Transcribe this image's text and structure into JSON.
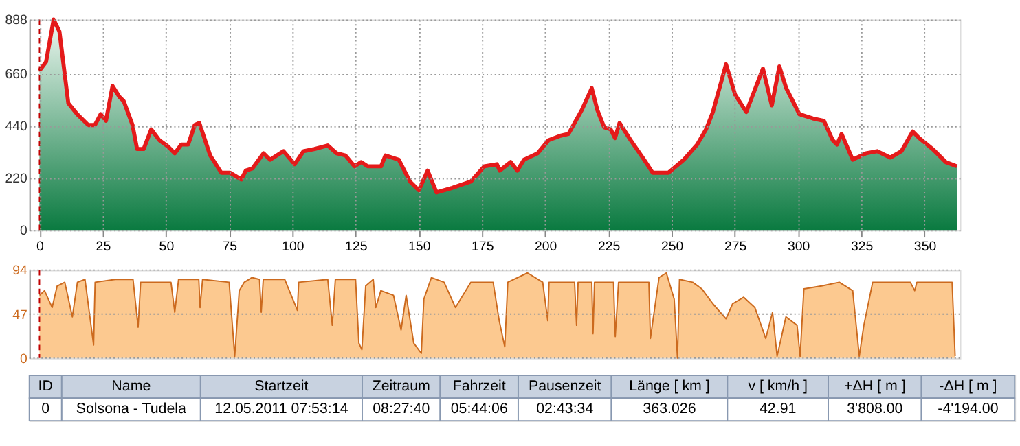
{
  "chart_data": [
    {
      "type": "area",
      "xlim": [
        -4,
        364
      ],
      "xticks": [
        0,
        25,
        50,
        75,
        100,
        125,
        150,
        175,
        200,
        225,
        250,
        275,
        300,
        325,
        350
      ],
      "ylim": [
        0,
        888
      ],
      "yticks": [
        0,
        220,
        440,
        660,
        888
      ],
      "grid": true,
      "ref_lines": [
        {
          "axis": "x",
          "value": 0,
          "color": "#c00000",
          "line_style": "dashed"
        }
      ],
      "x": [
        0,
        2.6,
        5.6,
        7.9,
        11.4,
        14.9,
        19.3,
        21.9,
        24.2,
        26.3,
        28.9,
        31.6,
        33.3,
        36.8,
        38.6,
        41.2,
        44.2,
        47.4,
        50.9,
        53.5,
        56.1,
        58.8,
        61.4,
        63.2,
        67.5,
        71.9,
        75.4,
        79.8,
        81.6,
        84.2,
        88.6,
        91.2,
        96.5,
        100.9,
        104.4,
        108.8,
        114,
        117.5,
        121,
        124.6,
        127.2,
        129.8,
        135.1,
        136.8,
        142.1,
        146.5,
        150,
        153.5,
        157,
        163.2,
        170.6,
        175.9,
        180.9,
        182,
        186.3,
        189,
        191.6,
        197,
        201.3,
        205.7,
        209.2,
        214.5,
        218.4,
        220.6,
        223.3,
        225.9,
        227.6,
        229.4,
        233.8,
        239.1,
        242.5,
        248.7,
        254.8,
        260.1,
        263.6,
        266.3,
        271.5,
        275.1,
        279.5,
        286.1,
        289.6,
        292.6,
        295.3,
        300.5,
        303.2,
        305.8,
        310.2,
        313.7,
        315.4,
        317.2,
        321.6,
        326.9,
        331.3,
        336.5,
        340.9,
        345.3,
        347.9,
        353.2,
        358.4,
        362.8
      ],
      "series": [
        {
          "color": "#e41a1a",
          "values": [
            672,
            709,
            888,
            837,
            535,
            489,
            443,
            443,
            489,
            461,
            608,
            562,
            544,
            443,
            342,
            342,
            425,
            379,
            352,
            324,
            361,
            361,
            443,
            452,
            315,
            242,
            242,
            214,
            251,
            260,
            324,
            297,
            333,
            278,
            333,
            342,
            357,
            324,
            315,
            269,
            287,
            269,
            269,
            315,
            297,
            205,
            168,
            251,
            159,
            178,
            205,
            269,
            278,
            251,
            287,
            251,
            297,
            324,
            379,
            397,
            406,
            507,
            599,
            507,
            434,
            425,
            388,
            452,
            379,
            297,
            242,
            242,
            297,
            361,
            425,
            498,
            699,
            571,
            498,
            681,
            526,
            690,
            599,
            489,
            480,
            471,
            461,
            379,
            361,
            406,
            297,
            324,
            333,
            306,
            333,
            416,
            388,
            342,
            287,
            269
          ]
        }
      ]
    },
    {
      "type": "area",
      "xlim": [
        -4,
        364
      ],
      "ylim": [
        0,
        94
      ],
      "yticks": [
        0,
        47,
        94
      ],
      "tick_labels": "y",
      "ref_lines": [
        {
          "axis": "x",
          "value": 0,
          "color": "#c00000",
          "line_style": "dashed"
        },
        {
          "axis": "y",
          "value": 94,
          "color": "#999999",
          "line_style": "dotted"
        },
        {
          "axis": "y",
          "value": 47,
          "color": "#999999",
          "line_style": "dotted"
        },
        {
          "axis": "y",
          "value": 0,
          "color": "#999999",
          "line_style": "dotted"
        }
      ],
      "x": [
        0,
        2,
        5,
        7,
        10,
        13,
        15,
        18,
        21.4,
        22,
        30,
        37,
        39,
        40,
        52,
        53.5,
        55,
        63,
        63.5,
        64.5,
        75,
        77.2,
        79,
        81,
        84,
        87,
        87.7,
        88.5,
        97,
        102,
        102.5,
        114,
        115.8,
        117,
        125,
        126.3,
        127.5,
        129,
        132,
        133,
        135,
        140,
        143,
        145,
        148,
        151,
        152,
        155,
        160,
        164.5,
        170.6,
        179.4,
        181.8,
        184,
        185.2,
        193,
        199,
        201,
        201.5,
        211.6,
        212.4,
        213,
        218.4,
        218.9,
        219.5,
        227,
        227.7,
        229,
        241,
        241.6,
        245,
        247.9,
        251,
        252.3,
        253.1,
        258.3,
        261.9,
        266.3,
        271.5,
        274.1,
        278.5,
        282.9,
        287.2,
        289.9,
        291.7,
        295.2,
        299.6,
        300.8,
        302.3,
        309.3,
        316.3,
        321.6,
        324.2,
        326,
        329.5,
        337.4,
        344.4,
        346.1,
        347,
        360.9,
        362.1
      ],
      "series": [
        {
          "color": "#cc6a1e",
          "values": [
            67,
            72,
            54,
            77,
            81,
            44,
            81,
            84,
            14,
            81,
            84,
            84,
            33,
            81,
            81,
            49,
            84,
            84,
            54,
            84,
            81,
            2,
            72,
            81,
            86,
            84,
            49,
            84,
            84,
            51,
            81,
            84,
            35,
            84,
            84,
            16,
            9,
            77,
            84,
            54,
            72,
            67,
            30,
            67,
            16,
            5,
            63,
            86,
            81,
            54,
            81,
            81,
            40,
            12,
            81,
            91,
            81,
            40,
            81,
            81,
            35,
            81,
            81,
            26,
            81,
            81,
            23,
            81,
            81,
            21,
            86,
            91,
            63,
            0,
            84,
            81,
            74,
            58,
            42,
            58,
            65,
            54,
            21,
            49,
            2,
            44,
            35,
            2,
            74,
            77,
            81,
            72,
            2,
            35,
            81,
            81,
            81,
            72,
            81,
            81,
            2
          ]
        }
      ]
    },
    {
      "type": "other",
      "annotations": [
        "ID",
        "Name",
        "Startzeit",
        "Zeitraum",
        "Fahrzeit",
        "Pausenzeit",
        "Länge  [ km ]",
        "v  [ km/h ]",
        "+ΔH  [ m ]",
        "-ΔH  [ m ]",
        "0",
        "Solsona - Tudela",
        "12.05.2011 07:53:14",
        "08:27:40",
        "05:44:06",
        "02:43:34",
        "363.026",
        "42.91",
        "3'808.00",
        "-4'194.00"
      ]
    }
  ]
}
